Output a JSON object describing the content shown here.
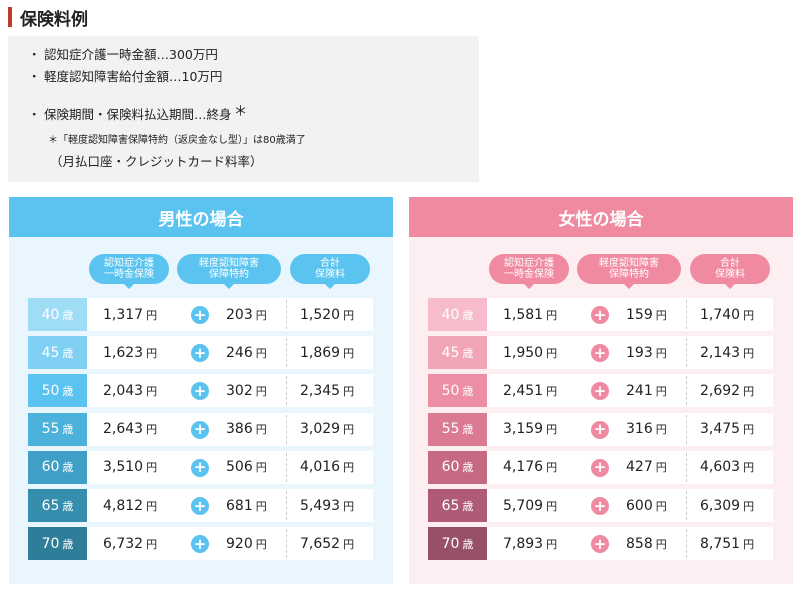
{
  "title": "保険料例",
  "info": {
    "line1": "認知症介護一時金額…300万円",
    "line2": "軽度認知障害給付金額…10万円",
    "line3": "保険期間・保険料払込期間…終身",
    "star": "＊",
    "note": "＊「軽度認知障害保障特約（返戻金なし型）」は80歳満了",
    "sub": "（月払口座・クレジットカード料率）",
    "bullet": "・"
  },
  "units": {
    "age": "歳",
    "yen": "円",
    "plus": "+"
  },
  "columns": {
    "c1": [
      "認知症介護",
      "一時金保険"
    ],
    "c2": [
      "軽度認知障害",
      "保障特約"
    ],
    "c3": [
      "合計",
      "保険料"
    ]
  },
  "male": {
    "heading": "男性の場合",
    "age_colors": [
      "#9fdcf6",
      "#7fd0f3",
      "#5bc3ef",
      "#4cb1db",
      "#3f9fc7",
      "#358ead",
      "#2f7e99"
    ],
    "rows": [
      {
        "age": "40",
        "c1": "1,317",
        "c2": "203",
        "c3": "1,520"
      },
      {
        "age": "45",
        "c1": "1,623",
        "c2": "246",
        "c3": "1,869"
      },
      {
        "age": "50",
        "c1": "2,043",
        "c2": "302",
        "c3": "2,345"
      },
      {
        "age": "55",
        "c1": "2,643",
        "c2": "386",
        "c3": "3,029"
      },
      {
        "age": "60",
        "c1": "3,510",
        "c2": "506",
        "c3": "4,016"
      },
      {
        "age": "65",
        "c1": "4,812",
        "c2": "681",
        "c3": "5,493"
      },
      {
        "age": "70",
        "c1": "6,732",
        "c2": "920",
        "c3": "7,652"
      }
    ]
  },
  "female": {
    "heading": "女性の場合",
    "age_colors": [
      "#f6bccb",
      "#f3a5b8",
      "#ec8ea4",
      "#db7a93",
      "#c66a84",
      "#b05b75",
      "#98506a"
    ],
    "rows": [
      {
        "age": "40",
        "c1": "1,581",
        "c2": "159",
        "c3": "1,740"
      },
      {
        "age": "45",
        "c1": "1,950",
        "c2": "193",
        "c3": "2,143"
      },
      {
        "age": "50",
        "c1": "2,451",
        "c2": "241",
        "c3": "2,692"
      },
      {
        "age": "55",
        "c1": "3,159",
        "c2": "316",
        "c3": "3,475"
      },
      {
        "age": "60",
        "c1": "4,176",
        "c2": "427",
        "c3": "4,603"
      },
      {
        "age": "65",
        "c1": "5,709",
        "c2": "600",
        "c3": "6,309"
      },
      {
        "age": "70",
        "c1": "7,893",
        "c2": "858",
        "c3": "8,751"
      }
    ]
  }
}
